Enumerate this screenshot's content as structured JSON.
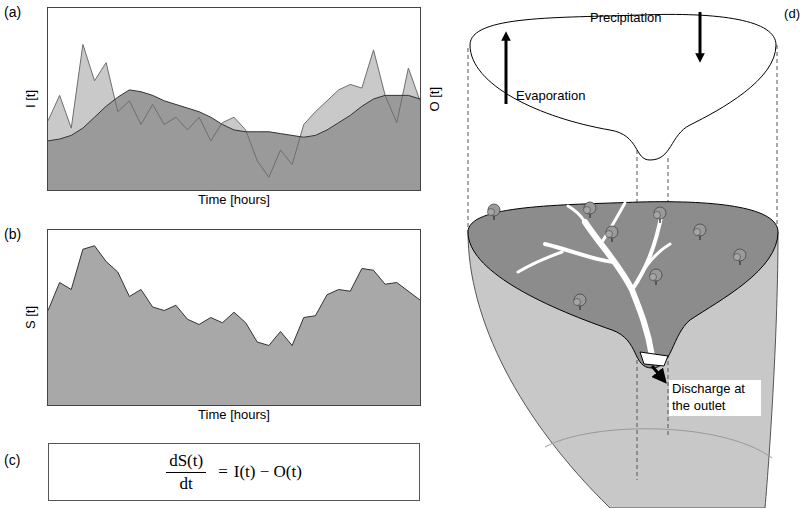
{
  "chart_data": [
    {
      "label": "(a)",
      "type": "area",
      "x_label": "Time [hours]",
      "y_label": "I [t]",
      "y2_label": "O [t]",
      "x": [
        0,
        1,
        2,
        3,
        4,
        5,
        6,
        7,
        8,
        9,
        10,
        11,
        12,
        13,
        14,
        15,
        16,
        17,
        18,
        19,
        20,
        21,
        22,
        23,
        24,
        25,
        26,
        27,
        28,
        29,
        30,
        31,
        32
      ],
      "xlim": [
        0,
        32
      ],
      "ylim": [
        0,
        1
      ],
      "tick_labels": false,
      "grid": false,
      "series": [
        {
          "color": "#c9c9c9",
          "values": [
            0.38,
            0.52,
            0.34,
            0.8,
            0.6,
            0.7,
            0.43,
            0.49,
            0.36,
            0.47,
            0.36,
            0.4,
            0.33,
            0.4,
            0.27,
            0.37,
            0.4,
            0.33,
            0.16,
            0.07,
            0.22,
            0.14,
            0.36,
            0.43,
            0.49,
            0.55,
            0.58,
            0.56,
            0.77,
            0.52,
            0.37,
            0.67,
            0.49
          ]
        },
        {
          "color": "#9a9a9a",
          "values": [
            0.27,
            0.28,
            0.3,
            0.34,
            0.4,
            0.46,
            0.51,
            0.55,
            0.54,
            0.52,
            0.49,
            0.47,
            0.45,
            0.43,
            0.4,
            0.36,
            0.33,
            0.32,
            0.32,
            0.32,
            0.31,
            0.3,
            0.29,
            0.3,
            0.33,
            0.37,
            0.41,
            0.46,
            0.5,
            0.52,
            0.52,
            0.52,
            0.5
          ]
        }
      ]
    },
    {
      "label": "(b)",
      "type": "area",
      "x_label": "Time [hours]",
      "y_label": "S [t]",
      "x": [
        0,
        1,
        2,
        3,
        4,
        5,
        6,
        7,
        8,
        9,
        10,
        11,
        12,
        13,
        14,
        15,
        16,
        17,
        18,
        19,
        20,
        21,
        22,
        23,
        24,
        25,
        26,
        27,
        28,
        29,
        30,
        31,
        32
      ],
      "xlim": [
        0,
        32
      ],
      "ylim": [
        0,
        1
      ],
      "tick_labels": false,
      "grid": false,
      "series": [
        {
          "color": "#a8a8a8",
          "values": [
            0.54,
            0.7,
            0.66,
            0.89,
            0.91,
            0.82,
            0.76,
            0.62,
            0.66,
            0.56,
            0.54,
            0.57,
            0.49,
            0.46,
            0.5,
            0.47,
            0.53,
            0.47,
            0.36,
            0.34,
            0.42,
            0.34,
            0.5,
            0.51,
            0.63,
            0.66,
            0.65,
            0.78,
            0.77,
            0.69,
            0.7,
            0.65,
            0.6
          ]
        }
      ]
    }
  ],
  "equation": {
    "label": "(c)",
    "numerator": "dS(t)",
    "denominator": "dt",
    "sign": "=",
    "rhs": "I(t) − O(t)"
  },
  "diagram": {
    "label": "(d)",
    "precipitation": "Precipitation",
    "evaporation": "Evaporation",
    "discharge": [
      "Discharge at",
      "the outlet"
    ]
  }
}
